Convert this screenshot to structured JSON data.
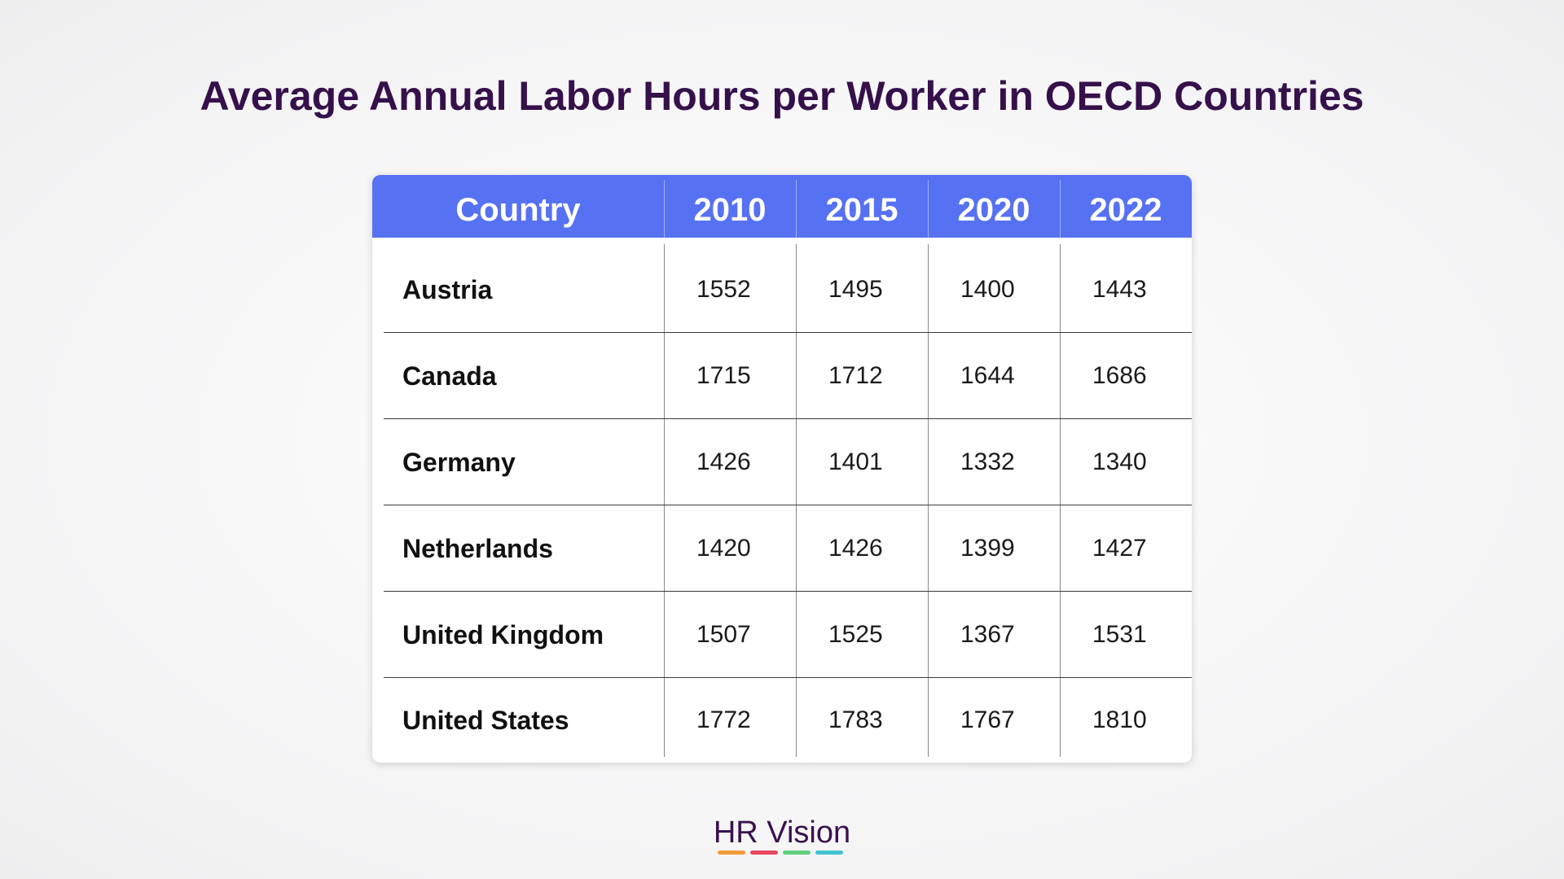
{
  "chart_data": {
    "type": "table",
    "title": "Average Annual Labor Hours per Worker in OECD Countries",
    "columns": [
      "Country",
      "2010",
      "2015",
      "2020",
      "2022"
    ],
    "rows": [
      {
        "country": "Austria",
        "values": [
          "1552",
          "1495",
          "1400",
          "1443"
        ]
      },
      {
        "country": "Canada",
        "values": [
          "1715",
          "1712",
          "1644",
          "1686"
        ]
      },
      {
        "country": "Germany",
        "values": [
          "1426",
          "1401",
          "1332",
          "1340"
        ]
      },
      {
        "country": "Netherlands",
        "values": [
          "1420",
          "1426",
          "1399",
          "1427"
        ]
      },
      {
        "country": "United Kingdom",
        "values": [
          "1507",
          "1525",
          "1367",
          "1531"
        ]
      },
      {
        "country": "United States",
        "values": [
          "1772",
          "1783",
          "1767",
          "1810"
        ]
      }
    ]
  },
  "brand": {
    "name": "HR Vision",
    "bar_colors": [
      "#f29b38",
      "#e8465f",
      "#5fcf7d",
      "#3fc4cf"
    ]
  },
  "colors": {
    "header_background": "#5671f1",
    "title": "#36104a"
  }
}
